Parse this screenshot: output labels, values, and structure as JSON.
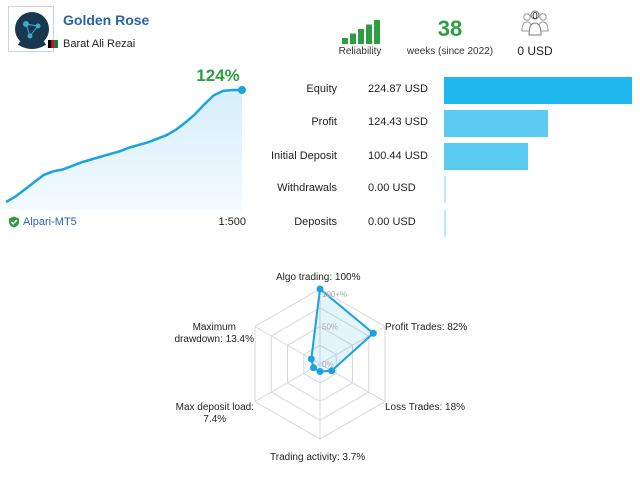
{
  "header": {
    "signal_name": "Golden Rose",
    "author": "Barat Ali Rezai",
    "reliability_label": "Reliability",
    "reliability_level": 5,
    "weeks_value": "38",
    "weeks_label": "weeks (since 2022)",
    "subscribers_count": "0",
    "subscribers_value": "0 USD",
    "accent_green": "#2e9e42",
    "link_blue": "#2a64a8"
  },
  "growth": {
    "percent": "124%",
    "broker": "Alpari-MT5",
    "leverage": "1:500",
    "line_color": "#1aa3de",
    "curve": [
      [
        0,
        0
      ],
      [
        4,
        6
      ],
      [
        8,
        14
      ],
      [
        12,
        22
      ],
      [
        16,
        30
      ],
      [
        20,
        34
      ],
      [
        24,
        36
      ],
      [
        28,
        40
      ],
      [
        32,
        44
      ],
      [
        36,
        47
      ],
      [
        40,
        50
      ],
      [
        44,
        53
      ],
      [
        48,
        56
      ],
      [
        52,
        60
      ],
      [
        56,
        63
      ],
      [
        60,
        66
      ],
      [
        64,
        70
      ],
      [
        68,
        74
      ],
      [
        72,
        80
      ],
      [
        76,
        88
      ],
      [
        80,
        97
      ],
      [
        84,
        108
      ],
      [
        88,
        118
      ],
      [
        92,
        123
      ],
      [
        96,
        124
      ],
      [
        100,
        124
      ]
    ]
  },
  "stats": [
    {
      "label": "Equity",
      "value": "224.87 USD",
      "amount": 224.87,
      "color": "#1eb8ee"
    },
    {
      "label": "Profit",
      "value": "124.43 USD",
      "amount": 124.43,
      "color": "#5bcbf2"
    },
    {
      "label": "Initial Deposit",
      "value": "100.44 USD",
      "amount": 100.44,
      "color": "#5bcbf2"
    },
    {
      "label": "Withdrawals",
      "value": "0.00 USD",
      "amount": 0,
      "color": "#bfe9f8"
    },
    {
      "label": "Deposits",
      "value": "0.00 USD",
      "amount": 0,
      "color": "#bfe9f8"
    }
  ],
  "radar": {
    "scale_max": "100+%",
    "scale_mid": "50%",
    "scale_min": "0%",
    "axes": [
      {
        "label": "Algo trading: 100%",
        "value": 100
      },
      {
        "label": "Profit Trades: 82%",
        "value": 82
      },
      {
        "label": "Loss Trades: 18%",
        "value": 18
      },
      {
        "label": "Trading activity: 3.7%",
        "value": 3.7
      },
      {
        "label": "Max deposit load:\n7.4%",
        "value": 7.4
      },
      {
        "label": "Maximum\ndrawdown: 13.4%",
        "value": 13.4
      }
    ]
  }
}
